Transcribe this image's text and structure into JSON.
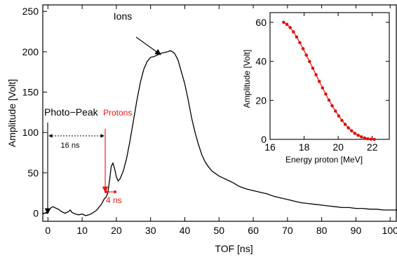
{
  "chart_data": [
    {
      "type": "line",
      "xlabel": "TOF [ns]",
      "ylabel": "Amplitude [Volt]",
      "xlim": [
        -1.5,
        102
      ],
      "ylim": [
        -10,
        258
      ],
      "xticks": [
        0,
        10,
        20,
        30,
        40,
        50,
        60,
        70,
        80,
        90,
        100
      ],
      "yticks": [
        0,
        50,
        100,
        150,
        200,
        250
      ],
      "line_color": "#000000",
      "series": [
        {
          "x": [
            -1.5,
            -1,
            0,
            0.5,
            1,
            1.5,
            2,
            2.5,
            3,
            4,
            5,
            6,
            6.5,
            7,
            8,
            9,
            10,
            11,
            12,
            13,
            14,
            14.5,
            15,
            15.5,
            16,
            16.5,
            17,
            17.5,
            18,
            18.5,
            19,
            19.5,
            20,
            20.5,
            21,
            22,
            23,
            24,
            25,
            26,
            27,
            28,
            29,
            30,
            31,
            32,
            33,
            34,
            35,
            35.5,
            36,
            37,
            38,
            39,
            40,
            41,
            42,
            43,
            44,
            45,
            46,
            47,
            48,
            50,
            52,
            54,
            56,
            58,
            60,
            62,
            64,
            66,
            68,
            70,
            72,
            74,
            76,
            78,
            80,
            82,
            84,
            86,
            88,
            90,
            92,
            94,
            96,
            98,
            100,
            102
          ],
          "y": [
            -1,
            0,
            2,
            5,
            7,
            8,
            7,
            6,
            5,
            2,
            0,
            2,
            4,
            1,
            -1,
            -2,
            -1,
            -3,
            -2,
            0,
            3,
            5,
            8,
            10,
            14,
            18,
            20,
            25,
            40,
            58,
            62,
            55,
            45,
            40,
            42,
            52,
            68,
            90,
            115,
            140,
            162,
            178,
            188,
            193,
            194,
            196,
            198,
            199,
            200,
            201,
            201,
            198,
            190,
            175,
            160,
            140,
            118,
            100,
            85,
            72,
            63,
            57,
            52,
            46,
            42,
            38,
            33,
            30,
            28,
            26,
            24,
            21,
            19,
            17,
            15,
            13,
            12,
            11,
            10,
            9,
            8,
            7,
            7,
            6,
            6,
            5,
            5,
            4,
            4,
            4
          ]
        }
      ],
      "annotations": {
        "ions": "Ions",
        "photo_peak": "Photo−Peak",
        "protons": "Protons",
        "interval_16": "16 ns",
        "interval_4": "4 ns"
      },
      "annotation_colors": {
        "protons": "#ee1111",
        "default": "#000000"
      }
    },
    {
      "type": "line",
      "xlabel": "Energy proton [MeV]",
      "ylabel": "Amplitude [Volt]",
      "xlim": [
        16,
        23
      ],
      "ylim": [
        0,
        65
      ],
      "xticks": [
        16,
        18,
        20,
        22
      ],
      "yticks": [
        0,
        20,
        40,
        60
      ],
      "line_color": "#e01010",
      "markers": true,
      "series": [
        {
          "x": [
            16.8,
            16.99,
            17.18,
            17.37,
            17.56,
            17.75,
            17.94,
            18.13,
            18.32,
            18.51,
            18.7,
            18.89,
            19.08,
            19.27,
            19.46,
            19.65,
            19.84,
            20.03,
            20.22,
            20.41,
            20.6,
            20.79,
            20.98,
            21.17,
            21.36,
            21.55,
            21.74,
            21.93,
            22.12
          ],
          "y": [
            60,
            59,
            57.3,
            55.1,
            52.5,
            49.6,
            46.5,
            43.2,
            39.9,
            36.5,
            33.1,
            29.7,
            26.4,
            23.2,
            20.1,
            17.2,
            14.5,
            12.0,
            9.7,
            7.7,
            5.9,
            4.4,
            3.1,
            2.1,
            1.3,
            0.7,
            0.3,
            0.1,
            0
          ]
        }
      ]
    }
  ]
}
